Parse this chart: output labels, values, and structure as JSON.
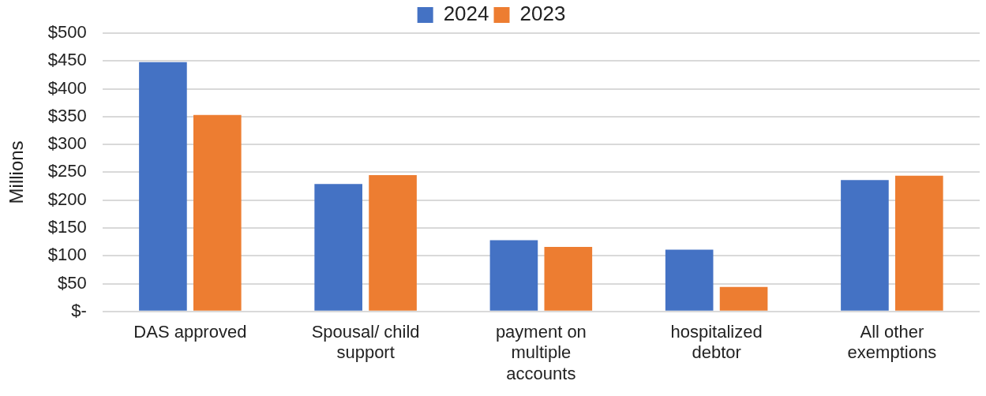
{
  "chart_data": {
    "type": "bar",
    "ylabel": "Millions",
    "categories": [
      "DAS approved",
      "Spousal/ child support",
      "payment on multiple accounts",
      "hospitalized debtor",
      "All other exemptions"
    ],
    "series": [
      {
        "name": "2024",
        "color": "#4472c4",
        "values": [
          448,
          229,
          128,
          111,
          236
        ]
      },
      {
        "name": "2023",
        "color": "#ed7d31",
        "values": [
          353,
          245,
          116,
          44,
          244
        ]
      }
    ],
    "ylim": [
      0,
      500
    ],
    "yticks": [
      {
        "value": 0,
        "label": "$-"
      },
      {
        "value": 50,
        "label": "$50"
      },
      {
        "value": 100,
        "label": "$100"
      },
      {
        "value": 150,
        "label": "$150"
      },
      {
        "value": 200,
        "label": "$200"
      },
      {
        "value": 250,
        "label": "$250"
      },
      {
        "value": 300,
        "label": "$300"
      },
      {
        "value": 350,
        "label": "$350"
      },
      {
        "value": 400,
        "label": "$400"
      },
      {
        "value": 450,
        "label": "$450"
      },
      {
        "value": 500,
        "label": "$500"
      }
    ],
    "grid": "y",
    "legend": "top"
  }
}
